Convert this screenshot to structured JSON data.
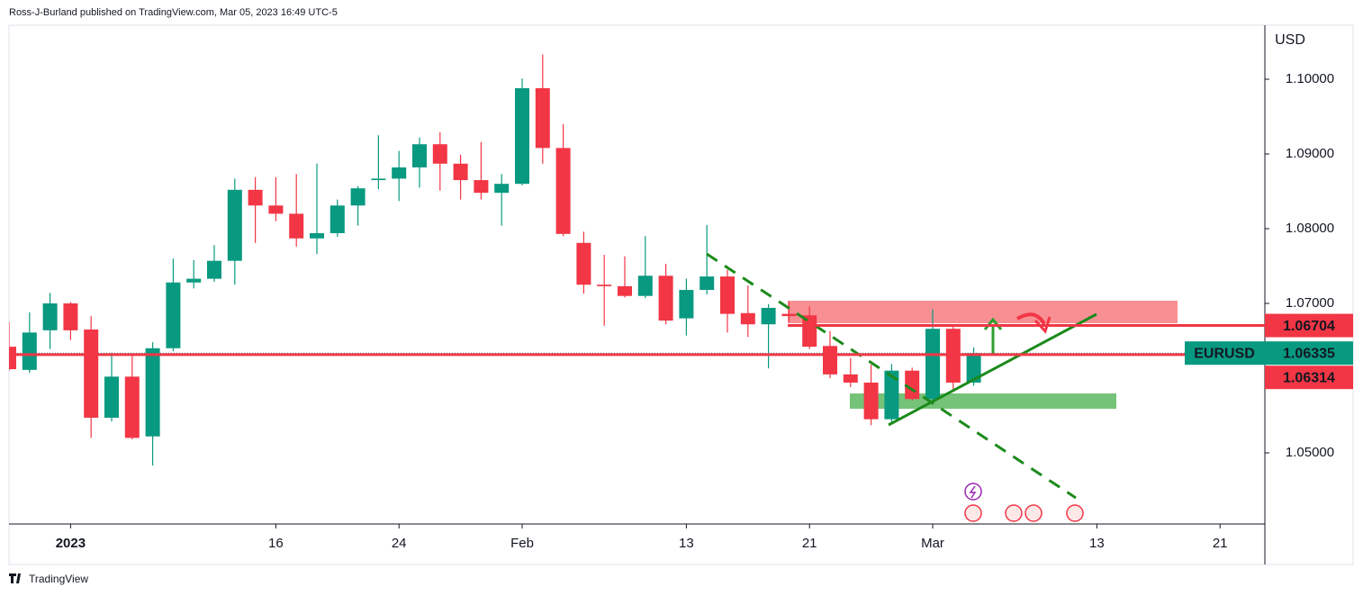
{
  "header": {
    "byline": "Ross-J-Burland published on TradingView.com, Mar 05, 2023 16:49 UTC-5",
    "brand": "TradingView"
  },
  "chart_data": {
    "type": "candlestick",
    "symbol": "EURUSD",
    "currency": "USD",
    "up_color": "#089981",
    "down_color": "#f23645",
    "x": [
      "2022-12-28",
      "2022-12-29",
      "2022-12-30",
      "2023-01-02",
      "2023-01-03",
      "2023-01-04",
      "2023-01-05",
      "2023-01-06",
      "2023-01-09",
      "2023-01-10",
      "2023-01-11",
      "2023-01-12",
      "2023-01-13",
      "2023-01-16",
      "2023-01-17",
      "2023-01-18",
      "2023-01-19",
      "2023-01-20",
      "2023-01-23",
      "2023-01-24",
      "2023-01-25",
      "2023-01-26",
      "2023-01-27",
      "2023-01-30",
      "2023-01-31",
      "2023-02-01",
      "2023-02-02",
      "2023-02-03",
      "2023-02-06",
      "2023-02-07",
      "2023-02-08",
      "2023-02-09",
      "2023-02-10",
      "2023-02-13",
      "2023-02-14",
      "2023-02-15",
      "2023-02-16",
      "2023-02-17",
      "2023-02-20",
      "2023-02-21",
      "2023-02-22",
      "2023-02-23",
      "2023-02-24",
      "2023-02-27",
      "2023-02-28",
      "2023-03-01",
      "2023-03-02",
      "2023-03-03"
    ],
    "open": [
      1.0642,
      1.0611,
      1.0664,
      1.07,
      1.0665,
      1.0547,
      1.0602,
      1.0522,
      1.064,
      1.0728,
      1.0733,
      1.0757,
      1.0852,
      1.0831,
      1.082,
      1.0787,
      1.0794,
      1.0831,
      1.0865,
      1.0867,
      1.0882,
      1.0913,
      1.0887,
      1.0865,
      1.0848,
      1.086,
      1.0988,
      1.0908,
      1.0781,
      1.0725,
      1.0723,
      1.071,
      1.0737,
      1.068,
      1.0718,
      1.0736,
      1.0687,
      1.0672,
      1.0686,
      1.0684,
      1.0643,
      1.0605,
      1.0594,
      1.0545,
      1.061,
      1.0572,
      1.0666,
      1.0594
    ],
    "high": [
      1.0675,
      1.0688,
      1.0714,
      1.0702,
      1.0683,
      1.0634,
      1.063,
      1.0648,
      1.076,
      1.0758,
      1.0778,
      1.0867,
      1.0869,
      1.0869,
      1.0873,
      1.0887,
      1.0839,
      1.0857,
      1.0925,
      1.0904,
      1.0922,
      1.0929,
      1.0899,
      1.0916,
      1.0873,
      1.1001,
      1.1033,
      1.094,
      1.0796,
      1.0765,
      1.0763,
      1.079,
      1.0753,
      1.0733,
      1.0805,
      1.0745,
      1.0724,
      1.0699,
      1.0702,
      1.0696,
      1.0663,
      1.0627,
      1.0618,
      1.0619,
      1.0614,
      1.0692,
      1.067,
      1.0641
    ],
    "low": [
      1.061,
      1.0607,
      1.0639,
      1.0651,
      1.052,
      1.0542,
      1.0518,
      1.0483,
      1.0636,
      1.072,
      1.0729,
      1.0725,
      1.0781,
      1.081,
      1.0776,
      1.0766,
      1.0789,
      1.0804,
      1.0853,
      1.0837,
      1.0855,
      1.0851,
      1.0839,
      1.0839,
      1.0804,
      1.0858,
      1.0887,
      1.079,
      1.0713,
      1.067,
      1.0708,
      1.0707,
      1.0672,
      1.0657,
      1.0712,
      1.0661,
      1.0655,
      1.0613,
      1.0675,
      1.0639,
      1.06,
      1.0588,
      1.0537,
      1.054,
      1.057,
      1.057,
      1.0582,
      1.059
    ],
    "close": [
      1.0612,
      1.0661,
      1.07,
      1.0664,
      1.0547,
      1.0602,
      1.052,
      1.064,
      1.0728,
      1.0733,
      1.0757,
      1.0852,
      1.0831,
      1.082,
      1.0787,
      1.0794,
      1.0831,
      1.0854,
      1.0867,
      1.0882,
      1.0913,
      1.0887,
      1.0865,
      1.0848,
      1.086,
      1.0988,
      1.0908,
      1.0793,
      1.0725,
      1.0723,
      1.071,
      1.0737,
      1.0677,
      1.0718,
      1.0736,
      1.0686,
      1.0672,
      1.0694,
      1.0683,
      1.0642,
      1.0605,
      1.0594,
      1.0545,
      1.061,
      1.0572,
      1.0666,
      1.0594,
      1.06335
    ],
    "last_price": 1.06335,
    "levels": [
      1.06704,
      1.06314
    ],
    "level_color": "#f23645",
    "ylim": [
      1.04048,
      1.10723
    ],
    "yticks": [
      {
        "value": 1.05,
        "label": "1.05000"
      },
      {
        "value": 1.07,
        "label": "1.07000"
      },
      {
        "value": 1.08,
        "label": "1.08000"
      },
      {
        "value": 1.09,
        "label": "1.09000"
      },
      {
        "value": 1.1,
        "label": "1.10000"
      }
    ],
    "xticks": [
      {
        "value": "2023-01-02",
        "label": "2023"
      },
      {
        "value": "2023-01-16",
        "label": "16"
      },
      {
        "value": "2023-01-24",
        "label": "24"
      },
      {
        "value": "2023-02-01",
        "label": "Feb"
      },
      {
        "value": "2023-02-13",
        "label": "13"
      },
      {
        "value": "2023-02-21",
        "label": "21"
      },
      {
        "value": "2023-03-01",
        "label": "Mar"
      },
      {
        "value": "2023-03-13",
        "label": "13"
      },
      {
        "value": "2023-03-21",
        "label": "21"
      }
    ]
  }
}
